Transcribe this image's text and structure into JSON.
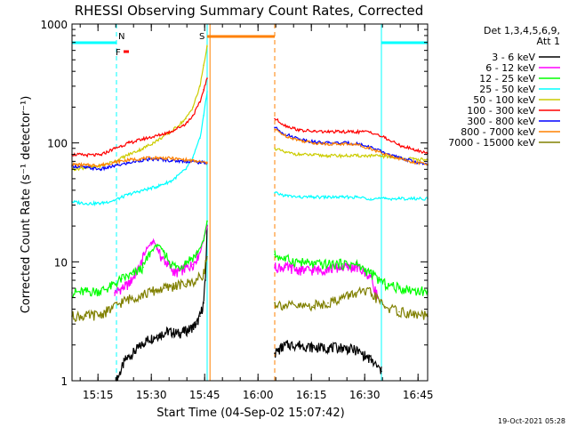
{
  "chart_data": {
    "type": "line",
    "title": "RHESSI Observing Summary Count Rates, Corrected",
    "xlabel": "Start Time (04-Sep-02 15:07:42)",
    "ylabel": "Corrected Count Rate (s⁻¹ detector⁻¹)",
    "y_scale": "log",
    "ylim": [
      1,
      1000
    ],
    "xlim_minutes_from_start": [
      0,
      100
    ],
    "x_tick_labels": [
      "15:15",
      "15:30",
      "15:45",
      "16:00",
      "16:15",
      "16:30",
      "16:45"
    ],
    "x_tick_minutes": [
      7.3,
      22.3,
      37.3,
      52.3,
      67.3,
      82.3,
      97.3
    ],
    "y_tick_labels": [
      "1",
      "10",
      "100",
      "1000"
    ],
    "y_tick_values": [
      1,
      10,
      100,
      1000
    ],
    "legend_header": [
      "Det 1,3,4,5,6,9,",
      "Att 1"
    ],
    "legend_position": "right",
    "series": [
      {
        "name": "3 - 6 keV",
        "color": "#000000",
        "segments": [
          {
            "x": [
              12.5,
              15,
              18,
              21,
              24,
              27,
              30,
              33,
              35,
              36,
              37,
              37.5,
              38
            ],
            "y": [
              1,
              1.5,
              1.8,
              2.2,
              2.4,
              2.6,
              2.5,
              2.7,
              3.0,
              3.5,
              4.5,
              7,
              20
            ]
          },
          {
            "x": [
              57,
              60,
              64,
              68,
              72,
              76,
              80,
              84,
              87
            ],
            "y": [
              1.7,
              2,
              2,
              1.9,
              1.9,
              1.9,
              1.8,
              1.5,
              1.2
            ]
          }
        ]
      },
      {
        "name": "6 - 12 keV",
        "color": "#ff00ff",
        "segments": [
          {
            "x": [
              12,
              16,
              19,
              21,
              23,
              25,
              27,
              29,
              31,
              34,
              36,
              38
            ],
            "y": [
              5.5,
              6.5,
              9,
              13,
              15,
              11,
              9.5,
              8,
              8.5,
              9.5,
              12,
              20
            ]
          },
          {
            "x": [
              57,
              60,
              64,
              68,
              72,
              76,
              80,
              84,
              86
            ],
            "y": [
              9,
              9,
              8.5,
              8.5,
              8.7,
              9,
              9,
              7.5,
              5
            ]
          }
        ]
      },
      {
        "name": "12 - 25 keV",
        "color": "#00ff00",
        "segments": [
          {
            "x": [
              0,
              4,
              8,
              11,
              14,
              17,
              20,
              22,
              24,
              26,
              28,
              30,
              32,
              35,
              37,
              38
            ],
            "y": [
              5.5,
              5.6,
              5.7,
              6.2,
              7.2,
              7.8,
              9,
              12,
              14,
              12,
              9.5,
              9,
              10,
              11.5,
              15,
              22
            ]
          },
          {
            "x": [
              57,
              60,
              64,
              68,
              72,
              76,
              80,
              84,
              88,
              92,
              96,
              100
            ],
            "y": [
              11.5,
              10.5,
              10,
              9.5,
              9.5,
              9.6,
              9.5,
              8,
              6.5,
              6,
              5.8,
              5.6
            ]
          }
        ]
      },
      {
        "name": "25 - 50 keV",
        "color": "#00ffff",
        "segments": [
          {
            "x": [
              0,
              4,
              8,
              12,
              16,
              20,
              24,
              28,
              32,
              34,
              36,
              37,
              38
            ],
            "y": [
              32,
              31,
              31,
              33,
              37,
              40,
              43,
              48,
              60,
              75,
              110,
              170,
              270
            ]
          },
          {
            "x": [
              57,
              60,
              64,
              68,
              72,
              76,
              80,
              84,
              88,
              92,
              96,
              100
            ],
            "y": [
              38,
              36,
              35,
              35,
              35,
              35,
              35,
              34,
              34,
              34,
              34,
              34
            ]
          }
        ]
      },
      {
        "name": "50 - 100 keV",
        "color": "#cccc00",
        "segments": [
          {
            "x": [
              0,
              4,
              8,
              12,
              16,
              20,
              24,
              28,
              32,
              34,
              36,
              37,
              38
            ],
            "y": [
              60,
              62,
              64,
              70,
              80,
              90,
              105,
              125,
              160,
              200,
              300,
              450,
              650
            ]
          },
          {
            "x": [
              57,
              60,
              64,
              68,
              72,
              76,
              80,
              84,
              88,
              92,
              96,
              100
            ],
            "y": [
              90,
              83,
              80,
              79,
              78,
              78,
              78,
              78,
              77,
              75,
              73,
              72
            ]
          }
        ]
      },
      {
        "name": "100 - 300 keV",
        "color": "#ff0000",
        "segments": [
          {
            "x": [
              0,
              4,
              8,
              12,
              16,
              20,
              24,
              28,
              32,
              34,
              36,
              37,
              38
            ],
            "y": [
              80,
              79,
              79,
              90,
              100,
              108,
              115,
              125,
              145,
              170,
              220,
              280,
              350
            ]
          },
          {
            "x": [
              57,
              60,
              64,
              68,
              72,
              76,
              80,
              84,
              88,
              92,
              96,
              100
            ],
            "y": [
              160,
              140,
              128,
              125,
              124,
              124,
              124,
              124,
              110,
              96,
              88,
              82
            ]
          }
        ]
      },
      {
        "name": "300 - 800 keV",
        "color": "#0000ff",
        "segments": [
          {
            "x": [
              0,
              4,
              8,
              12,
              16,
              20,
              24,
              28,
              32,
              35,
              38
            ],
            "y": [
              64,
              62,
              60,
              64,
              68,
              72,
              73,
              71,
              70,
              69,
              68
            ]
          },
          {
            "x": [
              57,
              60,
              64,
              68,
              72,
              76,
              80,
              84,
              88,
              92,
              96,
              100
            ],
            "y": [
              135,
              118,
              108,
              102,
              100,
              100,
              99,
              92,
              82,
              75,
              70,
              65
            ]
          }
        ]
      },
      {
        "name": "800 - 7000 keV",
        "color": "#ff8000",
        "segments": [
          {
            "x": [
              0,
              4,
              8,
              12,
              16,
              20,
              24,
              28,
              32,
              35,
              38
            ],
            "y": [
              66,
              65,
              65,
              69,
              72,
              74,
              75,
              74,
              72,
              70,
              68
            ]
          },
          {
            "x": [
              57,
              60,
              64,
              68,
              72,
              76,
              80,
              84,
              88,
              92,
              96,
              100
            ],
            "y": [
              130,
              115,
              105,
              100,
              98,
              98,
              97,
              90,
              80,
              74,
              69,
              66
            ]
          }
        ]
      },
      {
        "name": "7000 - 15000 keV",
        "color": "#808000",
        "segments": [
          {
            "x": [
              0,
              4,
              8,
              11,
              14,
              17,
              20,
              23,
              26,
              29,
              32,
              35,
              37,
              38
            ],
            "y": [
              3.5,
              3.5,
              3.6,
              4.0,
              4.6,
              5.0,
              5.3,
              5.7,
              6.0,
              6.3,
              6.5,
              7.0,
              8.0,
              11
            ]
          },
          {
            "x": [
              57,
              60,
              64,
              68,
              72,
              76,
              80,
              84,
              88,
              92,
              96,
              100
            ],
            "y": [
              4.5,
              4.3,
              4.2,
              4.3,
              4.5,
              5.0,
              5.5,
              5.5,
              4.2,
              3.8,
              3.6,
              3.5
            ]
          }
        ]
      }
    ],
    "night_periods_minutes": [
      [
        38,
        57
      ]
    ],
    "saa_periods_minutes": [],
    "flags": [
      {
        "label": "N",
        "color": "#00ffff",
        "x": [
          0,
          12.5
        ]
      },
      {
        "label": "N",
        "color": "#00ffff",
        "x": [
          87,
          100
        ]
      },
      {
        "label": "S",
        "color": "#ff8000",
        "x": [
          38,
          57
        ]
      },
      {
        "label": "F",
        "color": "#ff0000",
        "x": [
          14.5,
          16
        ]
      }
    ],
    "vertical_lines": [
      {
        "x": 12.5,
        "color": "#00ffff",
        "dash": true
      },
      {
        "x": 38,
        "color": "#00ffff",
        "dash": false
      },
      {
        "x": 38.8,
        "color": "#ff8000",
        "dash": false
      },
      {
        "x": 57,
        "color": "#ff8000",
        "dash": true
      },
      {
        "x": 87,
        "color": "#00ffff",
        "dash": false
      },
      {
        "x": 100,
        "color": "#00ffff",
        "dash": true
      }
    ],
    "footer_date": "19-Oct-2021 05:28"
  }
}
